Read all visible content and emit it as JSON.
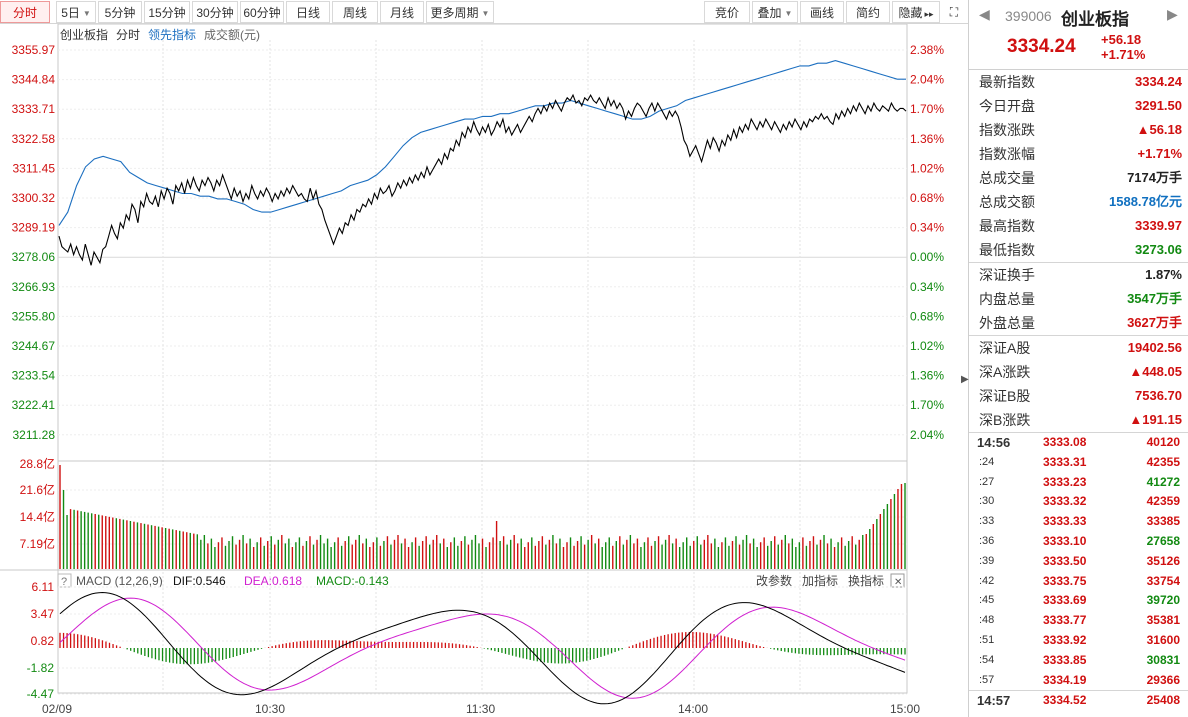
{
  "toolbar": {
    "left": [
      {
        "label": "分时",
        "active": true,
        "caret": false
      },
      {
        "label": "5日",
        "active": false,
        "caret": true
      },
      {
        "label": "5分钟",
        "active": false,
        "caret": false
      },
      {
        "label": "15分钟",
        "active": false,
        "caret": false
      },
      {
        "label": "30分钟",
        "active": false,
        "caret": false
      },
      {
        "label": "60分钟",
        "active": false,
        "caret": false
      },
      {
        "label": "日线",
        "active": false,
        "caret": false
      },
      {
        "label": "周线",
        "active": false,
        "caret": false
      },
      {
        "label": "月线",
        "active": false,
        "caret": false
      },
      {
        "label": "更多周期",
        "active": false,
        "caret": true
      }
    ],
    "right": [
      {
        "label": "竞价",
        "caret": false
      },
      {
        "label": "叠加",
        "caret": true
      },
      {
        "label": "画线",
        "caret": false
      },
      {
        "label": "简约",
        "caret": false
      },
      {
        "label": "隐藏",
        "caret": false
      }
    ],
    "collapse_glyph": "▸▸",
    "fullscreen_icon": "fullscreen-icon"
  },
  "chart": {
    "legend": {
      "name": "创业板指",
      "mode": "分时",
      "lead": "领先指标",
      "volume": "成交额(元)"
    },
    "price_ticks": [
      "3355.97",
      "3344.84",
      "3333.71",
      "3322.58",
      "3311.45",
      "3300.32",
      "3289.19",
      "3278.06",
      "3266.93",
      "3255.80",
      "3244.67",
      "3233.54",
      "3222.41",
      "3211.28"
    ],
    "pct_ticks": [
      "2.38%",
      "2.04%",
      "1.70%",
      "1.36%",
      "1.02%",
      "0.68%",
      "0.34%",
      "0.00%",
      "0.34%",
      "0.68%",
      "1.02%",
      "1.36%",
      "1.70%",
      "2.04%"
    ],
    "vol_ticks": [
      "28.8亿",
      "21.6亿",
      "14.4亿",
      "7.19亿"
    ],
    "macd": {
      "title": "MACD (12,26,9)",
      "dif": "DIF:0.546",
      "dea": "DEA:0.618",
      "macd": "MACD:-0.143",
      "ticks": [
        "6.11",
        "3.47",
        "0.82",
        "-1.82",
        "-4.47"
      ],
      "buttons": [
        "改参数",
        "加指标",
        "换指标"
      ]
    },
    "time_labels": [
      "02/09",
      "10:30",
      "11:30",
      "14:00",
      "15:00"
    ],
    "colors": {
      "price_line": "#000000",
      "lead_line": "#1c6fc0",
      "up": "#d01010",
      "down": "#128a12",
      "dif": "#000000",
      "dea": "#d020d0"
    }
  },
  "chart_data": {
    "type": "line",
    "ylim": [
      3211.28,
      3355.97
    ],
    "base": 3278.06,
    "series": [
      {
        "values": [
          3286,
          3282,
          3281,
          3280,
          3283,
          3279,
          3282,
          3279,
          3277,
          3283,
          3279,
          3275,
          3280,
          3278,
          3276,
          3281,
          3282,
          3286,
          3290,
          3287,
          3285,
          3291,
          3289,
          3294,
          3292,
          3298,
          3296,
          3291,
          3299,
          3297,
          3302,
          3299,
          3298,
          3301,
          3297,
          3303,
          3300,
          3304,
          3302,
          3298,
          3305,
          3303,
          3306,
          3302,
          3307,
          3304,
          3308,
          3305,
          3303,
          3307,
          3305,
          3308,
          3306,
          3303,
          3307,
          3305,
          3309,
          3306,
          3303,
          3300,
          3304,
          3301,
          3303,
          3299,
          3302,
          3300,
          3305,
          3302,
          3300,
          3303,
          3301,
          3304,
          3302,
          3299,
          3302,
          3300,
          3303,
          3301,
          3304,
          3302,
          3305,
          3303,
          3301,
          3302,
          3300,
          3299,
          3304,
          3300,
          3303,
          3298,
          3296,
          3292,
          3289,
          3286,
          3283,
          3286,
          3289,
          3287,
          3291,
          3290,
          3294,
          3292,
          3296,
          3295,
          3298,
          3297,
          3300,
          3298,
          3302,
          3300,
          3304,
          3302,
          3303,
          3305,
          3301,
          3303,
          3306,
          3304,
          3307,
          3305,
          3308,
          3306,
          3309,
          3307,
          3310,
          3308,
          3312,
          3309,
          3311,
          3313,
          3315,
          3313,
          3317,
          3315,
          3319,
          3318,
          3322,
          3320,
          3325,
          3323,
          3327,
          3325,
          3329,
          3326,
          3324,
          3327,
          3325,
          3328,
          3324,
          3326,
          3329,
          3327,
          3330,
          3325,
          3327,
          3324,
          3326,
          3328,
          3325,
          3327,
          3329,
          3331,
          3329,
          3332,
          3334,
          3332,
          3335,
          3333,
          3336,
          3334,
          3337,
          3335,
          3333,
          3336,
          3338,
          3337,
          3339,
          3336,
          3337,
          3335,
          3338,
          3337,
          3339,
          3337,
          3336,
          3338,
          3336,
          3334,
          3338,
          3335,
          3337,
          3334,
          3336,
          3334,
          3330,
          3333,
          3331,
          3334,
          3336,
          3335,
          3333,
          3331,
          3334,
          3336,
          3333,
          3336,
          3334,
          3332,
          3330,
          3333,
          3331,
          3333,
          3331,
          3327,
          3322,
          3320,
          3316,
          3318,
          3320,
          3317,
          3314,
          3318,
          3322,
          3319,
          3323,
          3321,
          3318,
          3322,
          3320,
          3324,
          3322,
          3326,
          3323,
          3327,
          3325,
          3328,
          3326,
          3330,
          3328,
          3326,
          3329,
          3327,
          3330,
          3328,
          3326,
          3329,
          3327,
          3325,
          3328,
          3326,
          3329,
          3327,
          3330,
          3328,
          3326,
          3329,
          3327,
          3330,
          3329,
          3331,
          3330,
          3332,
          3330,
          3331,
          3329,
          3328,
          3332,
          3330,
          3333,
          3331,
          3334,
          3332,
          3335,
          3333,
          3336,
          3334,
          3332,
          3335,
          3333,
          3336,
          3334,
          3333,
          3335,
          3334,
          3333,
          3336,
          3334,
          3333,
          3334,
          3334,
          3333
        ]
      },
      {
        "values": [
          3290,
          3295,
          3305,
          3312,
          3315,
          3316,
          3315,
          3314,
          3310,
          3308,
          3306,
          3305,
          3304,
          3303,
          3302,
          3302,
          3301,
          3301,
          3300,
          3300,
          3299,
          3298,
          3296,
          3295,
          3295,
          3296,
          3297,
          3298,
          3299,
          3300,
          3301,
          3302,
          3303,
          3305,
          3306,
          3307,
          3309,
          3312,
          3316,
          3320,
          3323,
          3325,
          3326,
          3327,
          3328,
          3329,
          3330,
          3330,
          3331,
          3331,
          3332,
          3332,
          3333,
          3334,
          3335,
          3335,
          3336,
          3336,
          3337,
          3336,
          3335,
          3334,
          3333,
          3332,
          3331,
          3330,
          3330,
          3331,
          3333,
          3334,
          3335,
          3337,
          3338,
          3339,
          3340,
          3341,
          3342,
          3343,
          3344,
          3345,
          3346,
          3347,
          3348,
          3349,
          3350,
          3350,
          3351,
          3351,
          3352,
          3351,
          3350,
          3349,
          3348,
          3347,
          3346,
          3345,
          3345
        ]
      }
    ]
  },
  "right_panel": {
    "code": "399006",
    "name": "创业板指",
    "price": "3334.24",
    "change": "+56.18",
    "change_pct": "+1.71%",
    "group1": [
      {
        "k": "最新指数",
        "v": "3334.24",
        "c": "red"
      },
      {
        "k": "今日开盘",
        "v": "3291.50",
        "c": "red"
      },
      {
        "k": "指数涨跌",
        "v": "▲56.18",
        "c": "red"
      },
      {
        "k": "指数涨幅",
        "v": "+1.71%",
        "c": "red"
      },
      {
        "k": "总成交量",
        "v": "7174万手",
        "c": "dark"
      },
      {
        "k": "总成交额",
        "v": "1588.78亿元",
        "c": "blue"
      },
      {
        "k": "最高指数",
        "v": "3339.97",
        "c": "red"
      },
      {
        "k": "最低指数",
        "v": "3273.06",
        "c": "green"
      }
    ],
    "group2": [
      {
        "k": "深证换手",
        "v": "1.87%",
        "c": "dark"
      },
      {
        "k": "内盘总量",
        "v": "3547万手",
        "c": "green"
      },
      {
        "k": "外盘总量",
        "v": "3627万手",
        "c": "red"
      }
    ],
    "group3": [
      {
        "k": "深证A股",
        "v": "19402.56",
        "c": "red"
      },
      {
        "k": "深A涨跌",
        "v": "▲448.05",
        "c": "red"
      },
      {
        "k": "深证B股",
        "v": "7536.70",
        "c": "red"
      },
      {
        "k": "深B涨跌",
        "v": "▲191.15",
        "c": "red"
      }
    ],
    "ticks": [
      {
        "t": "14:56",
        "p": "3333.08",
        "v": "40120",
        "c": "red",
        "big": true
      },
      {
        "t": ":24",
        "p": "3333.31",
        "v": "42355",
        "c": "red"
      },
      {
        "t": ":27",
        "p": "3333.23",
        "v": "41272",
        "c": "green"
      },
      {
        "t": ":30",
        "p": "3333.32",
        "v": "42359",
        "c": "red"
      },
      {
        "t": ":33",
        "p": "3333.33",
        "v": "33385",
        "c": "red"
      },
      {
        "t": ":36",
        "p": "3333.10",
        "v": "27658",
        "c": "green"
      },
      {
        "t": ":39",
        "p": "3333.50",
        "v": "35126",
        "c": "red"
      },
      {
        "t": ":42",
        "p": "3333.75",
        "v": "33754",
        "c": "red"
      },
      {
        "t": ":45",
        "p": "3333.69",
        "v": "39720",
        "c": "green"
      },
      {
        "t": ":48",
        "p": "3333.77",
        "v": "35381",
        "c": "red"
      },
      {
        "t": ":51",
        "p": "3333.92",
        "v": "31600",
        "c": "red"
      },
      {
        "t": ":54",
        "p": "3333.85",
        "v": "30831",
        "c": "green"
      },
      {
        "t": ":57",
        "p": "3334.19",
        "v": "29366",
        "c": "red"
      },
      {
        "t": "14:57",
        "p": "3334.52",
        "v": "25408",
        "c": "red",
        "big": true
      }
    ]
  }
}
